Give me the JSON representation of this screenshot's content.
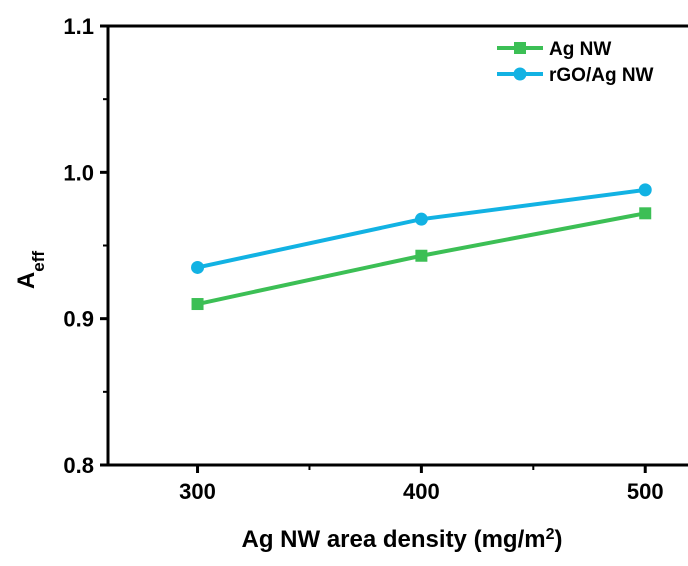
{
  "chart_data": {
    "type": "line",
    "xlabel": "Ag NW area density (mg/m",
    "xlabel_sup": "2",
    "xlabel_tail": ")",
    "ylabel": "A",
    "ylabel_sub": "eff",
    "xlim": [
      260,
      520
    ],
    "ylim": [
      0.8,
      1.1
    ],
    "x_ticks": [
      300,
      400,
      500
    ],
    "x_tick_labels": [
      "300",
      "400",
      "500"
    ],
    "y_ticks": [
      0.8,
      0.9,
      1.0,
      1.1
    ],
    "y_tick_labels": [
      "0.8",
      "0.9",
      "1.0",
      "1.1"
    ],
    "grid": false,
    "legend_position": "top-right",
    "series": [
      {
        "name": "Ag NW",
        "x": [
          300,
          400,
          500
        ],
        "values": [
          0.91,
          0.943,
          0.972
        ],
        "color": "#3cbf55",
        "marker": "square"
      },
      {
        "name": "rGO/Ag NW",
        "x": [
          300,
          400,
          500
        ],
        "values": [
          0.935,
          0.968,
          0.988
        ],
        "color": "#12b2e3",
        "marker": "circle"
      }
    ]
  }
}
